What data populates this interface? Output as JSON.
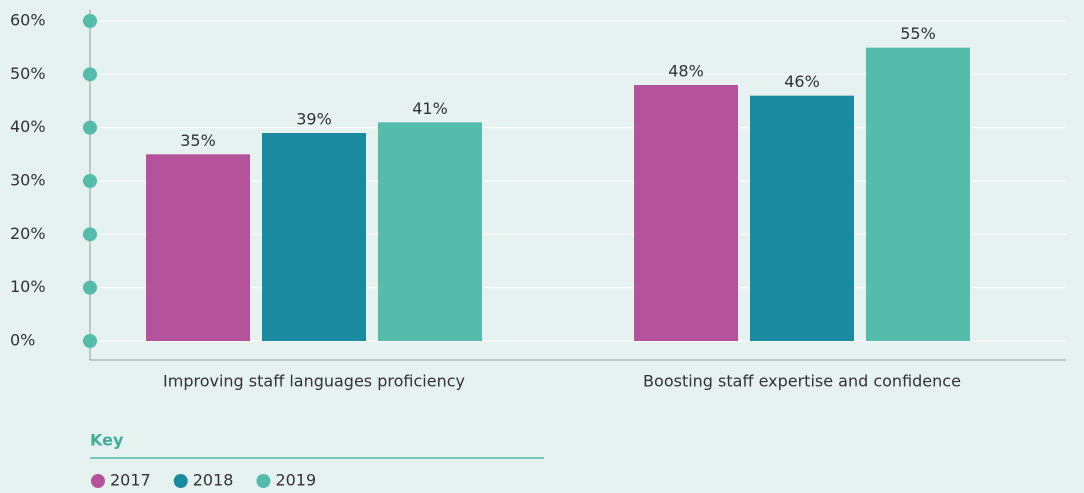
{
  "chart_data": {
    "type": "bar",
    "categories": [
      "Improving staff languages proficiency",
      "Boosting staff expertise and confidence"
    ],
    "series": [
      {
        "name": "2017",
        "color": "#b4529c",
        "values": [
          35,
          48
        ],
        "value_labels": [
          "35%",
          "48%"
        ]
      },
      {
        "name": "2018",
        "color": "#1a8aa0",
        "values": [
          39,
          46
        ],
        "value_labels": [
          "39%",
          "46%"
        ]
      },
      {
        "name": "2019",
        "color": "#55bcab",
        "values": [
          41,
          55
        ],
        "value_labels": [
          "41%",
          "55%"
        ]
      }
    ],
    "ylim": [
      0,
      60
    ],
    "yticks": [
      {
        "value": 0,
        "label": "0%"
      },
      {
        "value": 10,
        "label": "10%"
      },
      {
        "value": 20,
        "label": "20%"
      },
      {
        "value": 30,
        "label": "30%"
      },
      {
        "value": 40,
        "label": "40%"
      },
      {
        "value": 50,
        "label": "50%"
      },
      {
        "value": 60,
        "label": "60%"
      }
    ],
    "grid": true,
    "legend_title": "Key"
  }
}
